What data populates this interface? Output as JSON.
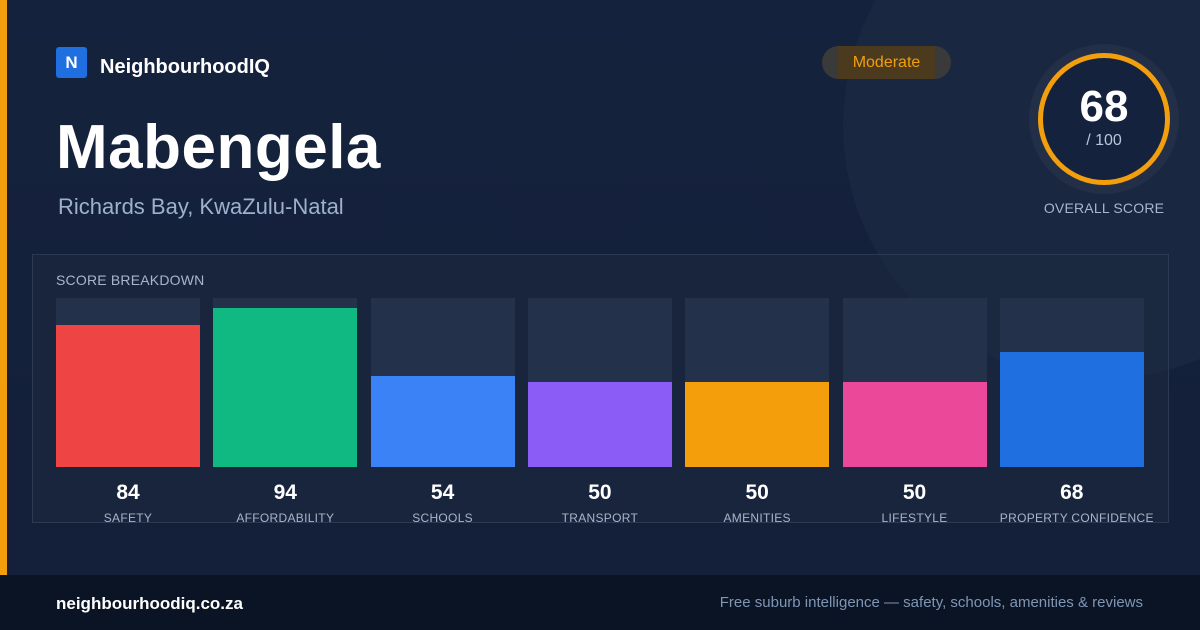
{
  "brand": {
    "logo_letter": "N",
    "name": "NeighbourhoodIQ"
  },
  "suburb": {
    "name": "Mabengela",
    "location": "Richards Bay, KwaZulu-Natal"
  },
  "rating_badge": "Moderate",
  "overall": {
    "score": "68",
    "max": "/ 100",
    "label": "OVERALL SCORE",
    "value": 68
  },
  "breakdown": {
    "title": "SCORE BREAKDOWN",
    "items": [
      {
        "label": "SAFETY",
        "value": "84",
        "score": 84,
        "color": "#ef4444"
      },
      {
        "label": "AFFORDABILITY",
        "value": "94",
        "score": 94,
        "color": "#10b981"
      },
      {
        "label": "SCHOOLS",
        "value": "54",
        "score": 54,
        "color": "#3b82f6"
      },
      {
        "label": "TRANSPORT",
        "value": "50",
        "score": 50,
        "color": "#8b5cf6"
      },
      {
        "label": "AMENITIES",
        "value": "50",
        "score": 50,
        "color": "#f59e0b"
      },
      {
        "label": "LIFESTYLE",
        "value": "50",
        "score": 50,
        "color": "#ec4899"
      },
      {
        "label": "PROPERTY CONFIDENCE",
        "value": "68",
        "score": 68,
        "color": "#1f6fe0"
      }
    ]
  },
  "footer": {
    "url": "neighbourhoodiq.co.za",
    "tagline": "Free suburb intelligence — safety, schools, amenities & reviews"
  },
  "colors": {
    "accent": "#f29e0d",
    "background": "#15223d"
  }
}
